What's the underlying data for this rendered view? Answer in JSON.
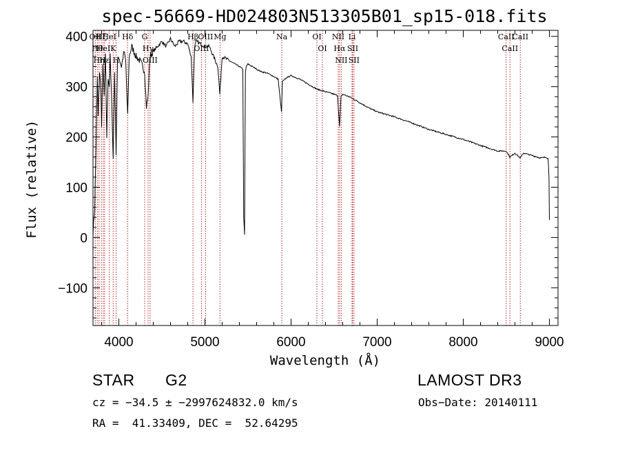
{
  "chart_data": {
    "type": "line",
    "title": "spec-56669-HD024803N513305B01_sp15-018.fits",
    "xlabel": "Wavelength (Å)",
    "ylabel": "Flux (relative)",
    "xlim": [
      3700,
      9100
    ],
    "ylim": [
      -175,
      412
    ],
    "xticks": [
      4000,
      5000,
      6000,
      7000,
      8000,
      9000
    ],
    "yticks": [
      -100,
      0,
      100,
      200,
      300,
      400
    ],
    "xtick_labels": [
      "4000",
      "5000",
      "6000",
      "7000",
      "8000",
      "9000"
    ],
    "ytick_labels": [
      "−100",
      "0",
      "100",
      "200",
      "300",
      "400"
    ],
    "series": [
      {
        "name": "spectrum",
        "x": [
          3700,
          3720,
          3735,
          3750,
          3760,
          3775,
          3790,
          3800,
          3815,
          3830,
          3845,
          3860,
          3875,
          3889,
          3900,
          3920,
          3934,
          3950,
          3968,
          3985,
          4000,
          4030,
          4060,
          4080,
          4102,
          4120,
          4150,
          4200,
          4250,
          4300,
          4320,
          4340,
          4360,
          4400,
          4450,
          4500,
          4550,
          4600,
          4650,
          4700,
          4750,
          4800,
          4840,
          4861,
          4880,
          4900,
          4950,
          5000,
          5050,
          5100,
          5150,
          5173,
          5200,
          5250,
          5300,
          5350,
          5400,
          5440,
          5450,
          5460,
          5470,
          5480,
          5500,
          5550,
          5600,
          5650,
          5700,
          5750,
          5800,
          5850,
          5889,
          5900,
          5950,
          6000,
          6100,
          6200,
          6300,
          6400,
          6500,
          6540,
          6563,
          6580,
          6600,
          6700,
          6800,
          6900,
          7000,
          7200,
          7400,
          7600,
          7800,
          8000,
          8200,
          8400,
          8498,
          8542,
          8600,
          8662,
          8700,
          8800,
          8900,
          8960,
          8985,
          8995,
          9000
        ],
        "values": [
          10,
          60,
          180,
          320,
          240,
          330,
          300,
          220,
          350,
          280,
          360,
          200,
          320,
          300,
          360,
          250,
          160,
          330,
          170,
          350,
          360,
          340,
          370,
          350,
          240,
          360,
          380,
          360,
          350,
          330,
          260,
          280,
          360,
          370,
          380,
          390,
          380,
          395,
          380,
          390,
          390,
          385,
          360,
          270,
          380,
          390,
          385,
          380,
          380,
          360,
          340,
          285,
          360,
          355,
          350,
          345,
          340,
          335,
          40,
          5,
          330,
          340,
          345,
          340,
          335,
          330,
          328,
          325,
          320,
          315,
          250,
          310,
          318,
          322,
          315,
          305,
          295,
          290,
          285,
          282,
          220,
          280,
          285,
          278,
          268,
          258,
          250,
          240,
          228,
          215,
          205,
          195,
          183,
          172,
          172,
          160,
          168,
          158,
          168,
          163,
          158,
          160,
          157,
          120,
          35
        ]
      }
    ],
    "line_markers": [
      {
        "wavelength": 3727,
        "label": "OII"
      },
      {
        "wavelength": 3750,
        "label": "Hθ"
      },
      {
        "wavelength": 3770,
        "label": "Hη"
      },
      {
        "wavelength": 3798,
        "label": "Hζ"
      },
      {
        "wavelength": 3820,
        "label": "HeI"
      },
      {
        "wavelength": 3835,
        "label": "Hε"
      },
      {
        "wavelength": 3889,
        "label": "HeI"
      },
      {
        "wavelength": 3934,
        "label": "K"
      },
      {
        "wavelength": 3968,
        "label": "H"
      },
      {
        "wavelength": 4102,
        "label": "Hδ"
      },
      {
        "wavelength": 4300,
        "label": "G"
      },
      {
        "wavelength": 4340,
        "label": "Hγ"
      },
      {
        "wavelength": 4363,
        "label": "OIII"
      },
      {
        "wavelength": 4861,
        "label": "Hβ"
      },
      {
        "wavelength": 4959,
        "label": "OIII"
      },
      {
        "wavelength": 5007,
        "label": "OIII"
      },
      {
        "wavelength": 5175,
        "label": "Mg"
      },
      {
        "wavelength": 5893,
        "label": "Na"
      },
      {
        "wavelength": 6300,
        "label": "OI"
      },
      {
        "wavelength": 6364,
        "label": "OI"
      },
      {
        "wavelength": 6548,
        "label": "NII"
      },
      {
        "wavelength": 6563,
        "label": "Hα"
      },
      {
        "wavelength": 6583,
        "label": "NII"
      },
      {
        "wavelength": 6708,
        "label": "Li"
      },
      {
        "wavelength": 6716,
        "label": "SII"
      },
      {
        "wavelength": 6731,
        "label": "SII"
      },
      {
        "wavelength": 8498,
        "label": "CaII"
      },
      {
        "wavelength": 8542,
        "label": "CaII"
      },
      {
        "wavelength": 8662,
        "label": "CaII"
      }
    ],
    "marker_color": "#b22222",
    "line_color": "#000000",
    "grid": false
  },
  "info": {
    "class_label": "STAR",
    "subclass": "G2",
    "survey": "LAMOST DR3",
    "cz_line": "cz = −34.5 ± −2997624832.0 km/s",
    "obs_date_line": "Obs−Date: 20140111",
    "radec_line": "RA =  41.33409, DEC =  52.64295"
  }
}
